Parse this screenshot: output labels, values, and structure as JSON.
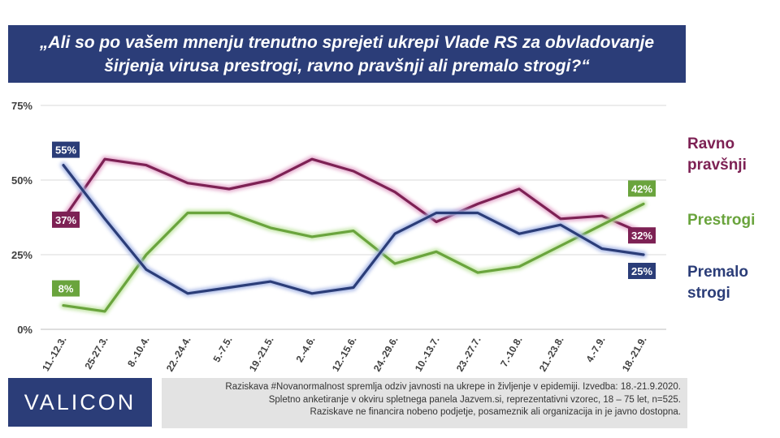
{
  "title": "„Ali so po vašem mnenju trenutno sprejeti ukrepi Vlade RS za obvladovanje širjenja virusa prestrogi, ravno pravšnji ali premalo strogi?“",
  "legend": {
    "ravno": "Ravno pravšnji",
    "prestrogi": "Prestrogi",
    "premalo": "Premalo strogi"
  },
  "logo": "VALICON",
  "footer": {
    "line1": "Raziskava #Novanormalnost spremlja odziv javnosti na ukrepe in življenje v epidemiji. Izvedba: 18.-21.9.2020.",
    "line2": "Spletno anketiranje v okviru spletnega panela Jazvem.si, reprezentativni vzorec, 18 – 75 let, n=525.",
    "line3": "Raziskave ne financira nobeno podjetje, posameznik ali organizacija in je javno dostopna."
  },
  "chart_data": {
    "type": "line",
    "categories": [
      "11.-12.3.",
      "25-27.3.",
      "8.-10.4.",
      "22.-24.4.",
      "5.-7.5.",
      "19.-21.5.",
      "2.-4.6.",
      "12.-15.6.",
      "24.-29.6.",
      "10.-13.7.",
      "23.-27.7.",
      "7.-10.8.",
      "21.-23.8.",
      "4.-7.9.",
      "18.-21.9."
    ],
    "y_ticks": [
      "0%",
      "25%",
      "50%",
      "75%"
    ],
    "ylim": [
      0,
      75
    ],
    "series": [
      {
        "name": "Ravno pravšnji",
        "color": "#7d2154",
        "glow": "#e4a9cc",
        "values": [
          37,
          57,
          55,
          49,
          47,
          50,
          57,
          53,
          46,
          36,
          42,
          47,
          37,
          38,
          32
        ],
        "labels": {
          "first": "37%",
          "last": "32%"
        }
      },
      {
        "name": "Prestrogi",
        "color": "#6aa43d",
        "glow": "#c4e6a8",
        "values": [
          8,
          6,
          25,
          39,
          39,
          34,
          31,
          33,
          22,
          26,
          19,
          21,
          28,
          35,
          42
        ],
        "labels": {
          "first": "8%",
          "last": "42%"
        }
      },
      {
        "name": "Premalo strogi",
        "color": "#2b3d78",
        "glow": "#a9b8e6",
        "values": [
          55,
          37,
          20,
          12,
          14,
          16,
          12,
          14,
          32,
          39,
          39,
          32,
          35,
          27,
          25
        ],
        "labels": {
          "first": "55%",
          "last": "25%"
        }
      }
    ]
  }
}
